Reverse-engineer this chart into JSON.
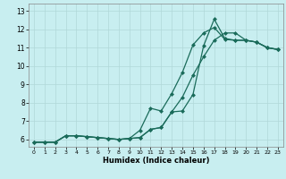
{
  "title": "",
  "xlabel": "Humidex (Indice chaleur)",
  "bg_color": "#c8eef0",
  "line_color": "#1a6b5a",
  "grid_color": "#b0d8d8",
  "xlim": [
    -0.5,
    23.5
  ],
  "ylim": [
    5.6,
    13.4
  ],
  "yticks": [
    6,
    7,
    8,
    9,
    10,
    11,
    12,
    13
  ],
  "xticks": [
    0,
    1,
    2,
    3,
    4,
    5,
    6,
    7,
    8,
    9,
    10,
    11,
    12,
    13,
    14,
    15,
    16,
    17,
    18,
    19,
    20,
    21,
    22,
    23
  ],
  "line1_x": [
    0,
    1,
    2,
    3,
    4,
    5,
    6,
    7,
    8,
    9,
    10,
    11,
    12,
    13,
    14,
    15,
    16,
    17,
    18,
    19,
    20,
    21,
    22,
    23
  ],
  "line1_y": [
    5.85,
    5.85,
    5.85,
    6.2,
    6.2,
    6.15,
    6.1,
    6.05,
    6.0,
    6.05,
    6.5,
    7.7,
    7.55,
    8.5,
    9.65,
    11.15,
    11.8,
    12.1,
    11.45,
    11.4,
    11.4,
    11.3,
    11.0,
    10.9
  ],
  "line2_x": [
    0,
    1,
    2,
    3,
    4,
    5,
    6,
    7,
    8,
    9,
    10,
    11,
    12,
    13,
    14,
    15,
    16,
    17,
    18,
    19,
    20,
    21,
    22,
    23
  ],
  "line2_y": [
    5.85,
    5.85,
    5.85,
    6.2,
    6.2,
    6.15,
    6.1,
    6.05,
    6.0,
    6.05,
    6.1,
    6.55,
    6.65,
    7.5,
    7.55,
    8.45,
    11.1,
    12.55,
    11.5,
    11.4,
    11.4,
    11.3,
    11.0,
    10.9
  ],
  "line3_x": [
    0,
    1,
    2,
    3,
    4,
    5,
    6,
    7,
    8,
    9,
    10,
    11,
    12,
    13,
    14,
    15,
    16,
    17,
    18,
    19,
    20,
    21,
    22,
    23
  ],
  "line3_y": [
    5.85,
    5.85,
    5.85,
    6.2,
    6.2,
    6.15,
    6.1,
    6.05,
    6.0,
    6.05,
    6.1,
    6.55,
    6.65,
    7.5,
    8.3,
    9.5,
    10.5,
    11.4,
    11.8,
    11.8,
    11.4,
    11.3,
    11.0,
    10.9
  ]
}
